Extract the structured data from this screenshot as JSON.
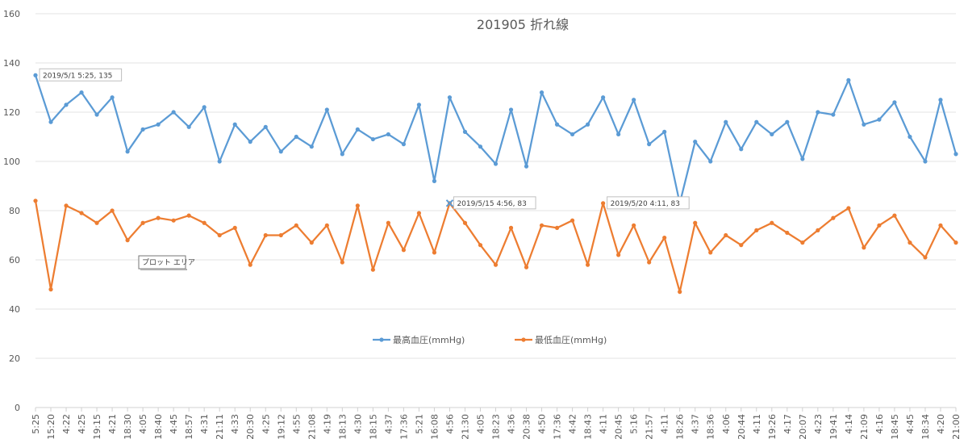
{
  "chart_data": {
    "type": "line",
    "title": "201905 折れ線",
    "xlabel": "",
    "ylabel": "",
    "ylim": [
      0,
      160
    ],
    "yticks": [
      0,
      20,
      40,
      60,
      80,
      100,
      120,
      140,
      160
    ],
    "grid": true,
    "legend_position": "bottom-center",
    "categories": [
      "5:25",
      "15:20",
      "4:22",
      "4:25",
      "19:15",
      "4:21",
      "18:30",
      "4:05",
      "18:40",
      "4:45",
      "18:57",
      "4:31",
      "21:11",
      "4:33",
      "20:30",
      "4:25",
      "19:12",
      "4:55",
      "21:08",
      "4:19",
      "18:13",
      "4:30",
      "18:15",
      "4:37",
      "17:36",
      "5:21",
      "16:08",
      "4:56",
      "21:30",
      "4:05",
      "18:23",
      "4:36",
      "20:38",
      "4:50",
      "17:36",
      "4:42",
      "18:43",
      "4:11",
      "20:45",
      "5:16",
      "21:57",
      "4:11",
      "18:26",
      "4:37",
      "18:36",
      "4:06",
      "20:44",
      "4:11",
      "19:26",
      "4:17",
      "20:07",
      "4:23",
      "19:41",
      "4:14",
      "21:09",
      "4:16",
      "18:45",
      "4:45",
      "18:34",
      "4:20",
      "21:00"
    ],
    "series": [
      {
        "name": "最高血圧(mmHg)",
        "color": "#5B9BD5",
        "values": [
          135,
          116,
          123,
          128,
          119,
          126,
          104,
          113,
          115,
          120,
          114,
          122,
          100,
          115,
          108,
          114,
          104,
          110,
          106,
          121,
          103,
          113,
          109,
          111,
          107,
          123,
          92,
          126,
          112,
          106,
          99,
          121,
          98,
          128,
          115,
          111,
          115,
          126,
          111,
          125,
          107,
          112,
          83,
          108,
          100,
          116,
          105,
          116,
          111,
          116,
          101,
          120,
          119,
          133,
          115,
          117,
          124,
          110,
          100,
          125,
          103
        ]
      },
      {
        "name": "最低血圧(mmHg)",
        "color": "#ED7D31",
        "values": [
          84,
          48,
          82,
          79,
          75,
          80,
          68,
          75,
          77,
          76,
          78,
          75,
          70,
          73,
          58,
          70,
          70,
          74,
          67,
          74,
          59,
          82,
          56,
          75,
          64,
          79,
          63,
          83,
          75,
          66,
          58,
          73,
          57,
          74,
          73,
          76,
          58,
          83,
          62,
          74,
          59,
          69,
          47,
          75,
          63,
          70,
          66,
          72,
          75,
          71,
          67,
          72,
          77,
          81,
          65,
          74,
          78,
          67,
          61,
          74,
          67
        ]
      }
    ],
    "annotations": [
      {
        "series": 0,
        "index": 0,
        "text": "2019/5/1 5:25, 135"
      },
      {
        "series": 1,
        "index": 27,
        "text": "2019/5/15 4:56, 83"
      },
      {
        "series": 1,
        "index": 37,
        "text": "2019/5/20 4:11, 83"
      }
    ],
    "tooltip": "プロット エリア"
  }
}
